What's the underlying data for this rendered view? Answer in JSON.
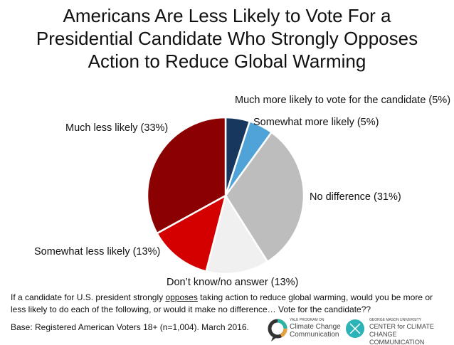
{
  "chart_data": {
    "type": "pie",
    "title": "Americans Are Less Likely to Vote For a Presidential Candidate Who Strongly Opposes Action to Reduce Global Warming",
    "title_lines": [
      "Americans Are Less Likely to Vote For a",
      "Presidential Candidate Who Strongly Opposes",
      "Action to Reduce Global Warming"
    ],
    "start": "top, clockwise",
    "slices": [
      {
        "label": "Much more likely to vote for the candidate (5%)",
        "value": 5,
        "color": "#17375e"
      },
      {
        "label": "Somewhat more likely (5%)",
        "value": 5,
        "color": "#4fa3d6"
      },
      {
        "label": "No difference (31%)",
        "value": 31,
        "color": "#bdbdbd"
      },
      {
        "label": "Don’t know/no answer (13%)",
        "value": 13,
        "color": "#f0f0f0"
      },
      {
        "label": "Somewhat less likely (13%)",
        "value": 13,
        "color": "#d40000"
      },
      {
        "label": "Much less likely (33%)",
        "value": 33,
        "color": "#8b0000"
      }
    ]
  },
  "question": {
    "before": "If a candidate for U.S. president strongly ",
    "emphasis": "opposes",
    "after": " taking action to reduce global warming, would you be more or less likely to do each of the following, or would it make no difference… Vote for the candidate??"
  },
  "base": "Base: Registered American Voters 18+ (n=1,004). March 2016.",
  "logos": {
    "yale": {
      "small": "YALE PROGRAM ON",
      "line1": "Climate Change",
      "line2": "Communication"
    },
    "gmu": {
      "small": "GEORGE MASON UNIVERSITY",
      "line1": "CENTER for CLIMATE CHANGE",
      "line2": "COMMUNICATION"
    }
  }
}
